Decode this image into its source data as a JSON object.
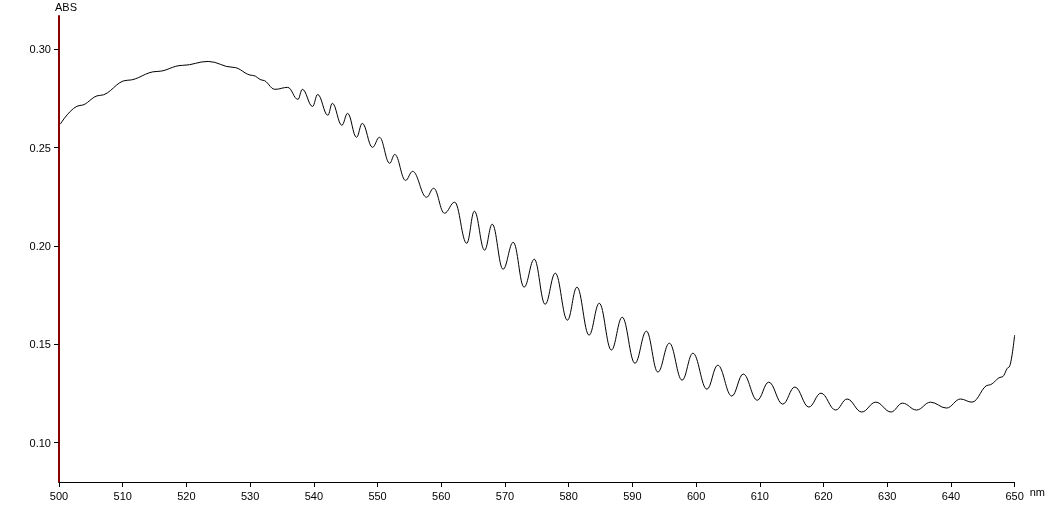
{
  "chart_data": {
    "type": "line",
    "xlabel": "nm",
    "ylabel": "ABS",
    "xlim": [
      500,
      650
    ],
    "ylim": [
      0.08,
      0.317
    ],
    "xticks": [
      500,
      510,
      520,
      530,
      540,
      550,
      560,
      570,
      580,
      590,
      600,
      610,
      620,
      630,
      640,
      650
    ],
    "yticks": [
      {
        "value": 0.1,
        "label": "0.10"
      },
      {
        "value": 0.15,
        "label": "0.15"
      },
      {
        "value": 0.2,
        "label": "0.20"
      },
      {
        "value": 0.25,
        "label": "0.25"
      },
      {
        "value": 0.3,
        "label": "0.30"
      }
    ],
    "grid": false,
    "marker": "none",
    "line_style": "solid",
    "series": [
      {
        "color": "#000000",
        "x": [
          500.2,
          503.3,
          506.4,
          510.7,
          515.4,
          519.4,
          523.4,
          527.3,
          530.4,
          532,
          533.9,
          535.9,
          537.5,
          538.2,
          539.8,
          540.6,
          542.2,
          542.9,
          544.4,
          545.3,
          546.7,
          547.6,
          549.2,
          550.3,
          551.9,
          552.7,
          554.4,
          555.5,
          557.7,
          558.8,
          560.5,
          562.1,
          564.0,
          565.2,
          566.8,
          568.0,
          569.7,
          571.3,
          573.0,
          574.6,
          576.3,
          577.9,
          579.8,
          581.3,
          583.2,
          584.8,
          586.7,
          588.4,
          590.4,
          592.2,
          594.0,
          595.8,
          597.8,
          599.5,
          601.7,
          603.4,
          605.6,
          607.4,
          609.6,
          611.4,
          613.6,
          615.5,
          617.7,
          619.6,
          621.9,
          623.7,
          626.0,
          628.2,
          630.6,
          632.4,
          634.6,
          636.8,
          639.3,
          641.5,
          643.3,
          645.9,
          648.0,
          649.1,
          650
        ],
        "values": [
          0.262,
          0.2715,
          0.2766,
          0.2843,
          0.2888,
          0.2919,
          0.2939,
          0.2909,
          0.2868,
          0.2843,
          0.2797,
          0.2807,
          0.2746,
          0.2797,
          0.271,
          0.2771,
          0.2665,
          0.2726,
          0.2614,
          0.2675,
          0.2553,
          0.2624,
          0.2502,
          0.2553,
          0.2421,
          0.2466,
          0.2334,
          0.238,
          0.2248,
          0.2294,
          0.2167,
          0.2223,
          0.2014,
          0.2177,
          0.1979,
          0.2111,
          0.1882,
          0.2019,
          0.1791,
          0.1933,
          0.1704,
          0.1862,
          0.1623,
          0.1791,
          0.1547,
          0.1709,
          0.1471,
          0.1638,
          0.1404,
          0.1567,
          0.1359,
          0.1506,
          0.1318,
          0.1455,
          0.1272,
          0.1394,
          0.1237,
          0.1349,
          0.1216,
          0.1308,
          0.1196,
          0.1283,
          0.1181,
          0.1252,
          0.1166,
          0.1222,
          0.1156,
          0.1206,
          0.1156,
          0.1201,
          0.1166,
          0.1206,
          0.1176,
          0.1222,
          0.1206,
          0.1293,
          0.1334,
          0.1384,
          0.1547
        ]
      }
    ]
  }
}
